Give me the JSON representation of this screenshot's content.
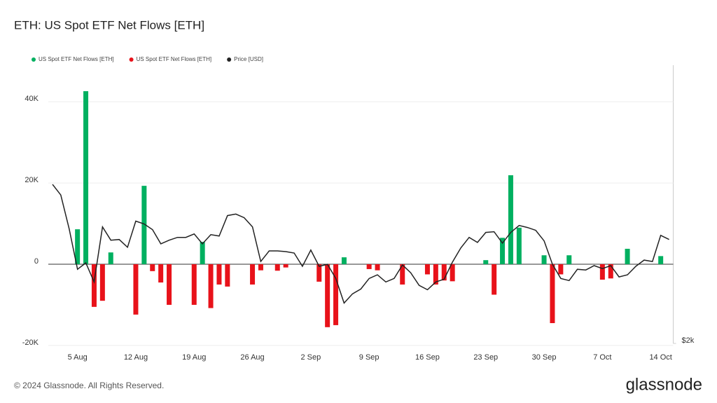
{
  "chart_data": {
    "type": "bar",
    "title": "ETH: US Spot ETF Net Flows [ETH]",
    "source": "© 2024 Glassnode. All Rights Reserved.",
    "brand": "glassnode",
    "categories": [
      null,
      null,
      null,
      "5 Aug",
      null,
      null,
      null,
      null,
      null,
      null,
      "12 Aug",
      null,
      null,
      null,
      null,
      null,
      null,
      "19 Aug",
      null,
      null,
      null,
      null,
      null,
      null,
      "26 Aug",
      null,
      null,
      null,
      null,
      null,
      null,
      "2 Sep",
      null,
      null,
      null,
      null,
      null,
      null,
      "9 Sep",
      null,
      null,
      null,
      null,
      null,
      null,
      "16 Sep",
      null,
      null,
      null,
      null,
      null,
      null,
      "23 Sep",
      null,
      null,
      null,
      null,
      null,
      null,
      "30 Sep",
      null,
      null,
      null,
      null,
      null,
      null,
      "7 Oct",
      null,
      null,
      null,
      null,
      null,
      null,
      "14 Oct",
      null
    ],
    "series": [
      {
        "name": "US Spot ETF Net Flows [ETH]",
        "color": "#00b060",
        "type": "bar",
        "values": [
          null,
          null,
          null,
          8600,
          42600,
          null,
          null,
          2900,
          null,
          null,
          null,
          19300,
          null,
          null,
          null,
          null,
          null,
          null,
          5500,
          null,
          null,
          null,
          null,
          null,
          null,
          null,
          null,
          null,
          null,
          null,
          null,
          null,
          null,
          null,
          null,
          1700,
          null,
          null,
          null,
          null,
          null,
          null,
          null,
          null,
          null,
          null,
          null,
          null,
          null,
          null,
          null,
          null,
          1000,
          null,
          6500,
          21900,
          9000,
          null,
          null,
          2200,
          null,
          null,
          2200,
          null,
          null,
          null,
          null,
          null,
          null,
          3800,
          null,
          null,
          null,
          2000,
          null
        ]
      },
      {
        "name": "US Spot ETF Net Flows [ETH]",
        "color": "#e8121a",
        "type": "bar",
        "values": [
          null,
          null,
          null,
          null,
          null,
          -10500,
          -9000,
          null,
          null,
          null,
          -12400,
          null,
          -1700,
          -4500,
          -10000,
          null,
          null,
          -10000,
          null,
          -10800,
          -5000,
          -5500,
          null,
          null,
          -5000,
          -1500,
          null,
          -1600,
          -800,
          null,
          null,
          null,
          -4300,
          -15500,
          -15000,
          null,
          null,
          null,
          -1200,
          -1500,
          null,
          null,
          -5000,
          null,
          null,
          -2500,
          -5000,
          -4000,
          -4200,
          null,
          null,
          null,
          null,
          -7500,
          null,
          null,
          null,
          null,
          null,
          null,
          -14500,
          -2500,
          null,
          null,
          null,
          null,
          -3800,
          -3500,
          null,
          null,
          null,
          null,
          null,
          null,
          null
        ]
      },
      {
        "name": "Price [USD]",
        "color": "#222222",
        "type": "line",
        "axis": "y2",
        "values": [
          3143,
          3067,
          2823,
          2533,
          2579,
          2442,
          2838,
          2742,
          2747,
          2691,
          2879,
          2859,
          2818,
          2716,
          2742,
          2762,
          2762,
          2787,
          2716,
          2782,
          2772,
          2919,
          2930,
          2904,
          2838,
          2589,
          2665,
          2665,
          2660,
          2650,
          2554,
          2671,
          2554,
          2569,
          2467,
          2290,
          2356,
          2391,
          2467,
          2493,
          2442,
          2467,
          2564,
          2508,
          2417,
          2386,
          2442,
          2462,
          2584,
          2686,
          2762,
          2726,
          2798,
          2803,
          2721,
          2798,
          2848,
          2833,
          2813,
          2737,
          2569,
          2467,
          2452,
          2533,
          2528,
          2559,
          2538,
          2559,
          2478,
          2493,
          2554,
          2599,
          2589,
          2777,
          2747
        ]
      }
    ],
    "ylim": [
      -19500,
      49000
    ],
    "yticks": [
      {
        "value": -20000,
        "label": "-20K"
      },
      0,
      {
        "value": 20000,
        "label": "20K"
      },
      {
        "value": 40000,
        "label": "40K"
      }
    ],
    "y2lim": [
      2000,
      4000
    ],
    "y2ticks": [
      {
        "value": 2000,
        "label": "$2k"
      }
    ],
    "grid": true
  }
}
